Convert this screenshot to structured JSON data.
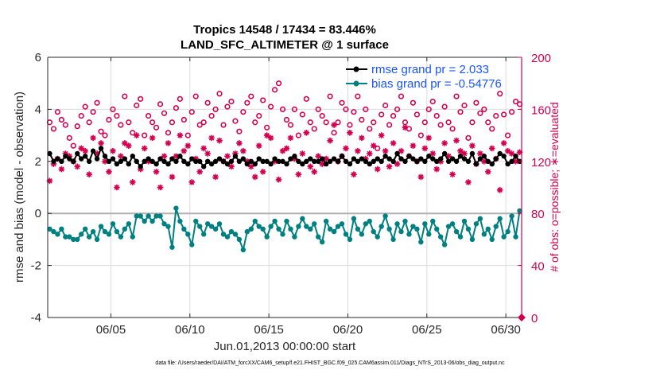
{
  "chart_data": {
    "type": "line",
    "title": [
      "Tropics 14548 / 17434 = 83.446%",
      "LAND_SFC_ALTIMETER @ 1 surface"
    ],
    "xlabel": "Jun.01,2013 00:00:00 start",
    "ylabel_left": "rmse and bias (model - observation)",
    "ylabel_right": "# of obs: o=possible; ∗=evaluated",
    "footer": "data file: /Users/raeder/DAI/ATM_forcXX/CAM6_setup/f.e21.FHIST_BGC.f09_025.CAM6assim.011/Diags_NTrS_2013-06/obs_diag_output.nc",
    "xlim_days": [
      0,
      30
    ],
    "x_start_day": 0.125,
    "x_step_days": 0.25,
    "x_ticks": [
      {
        "day": 4,
        "label": "06/05"
      },
      {
        "day": 9,
        "label": "06/10"
      },
      {
        "day": 14,
        "label": "06/15"
      },
      {
        "day": 19,
        "label": "06/20"
      },
      {
        "day": 24,
        "label": "06/25"
      },
      {
        "day": 29,
        "label": "06/30"
      }
    ],
    "ylim_left": [
      -4,
      6
    ],
    "y_ticks_left": [
      -4,
      -2,
      0,
      2,
      4,
      6
    ],
    "ylim_right": [
      0,
      200
    ],
    "y_ticks_right": [
      0,
      40,
      80,
      120,
      160,
      200
    ],
    "grid": true,
    "legend": {
      "placement": "top-right",
      "entries": [
        "rmse grand pr = 2.033",
        "bias grand pr = -0.54776"
      ]
    },
    "colors": {
      "rmse": "#000000",
      "bias": "#008080",
      "obs": "#d4004f",
      "legend_text": "#1a55ff",
      "grid": "#dcdcdc",
      "zero": "#b0b0b0"
    },
    "right_axis_marker": 0,
    "series": [
      {
        "name": "rmse",
        "axis": "left",
        "values": [
          2.3,
          2.0,
          2.1,
          2.0,
          2.2,
          2.1,
          2.0,
          2.3,
          2.1,
          2.2,
          2.0,
          2.4,
          2.1,
          2.5,
          2.2,
          2.0,
          2.1,
          1.9,
          2.0,
          2.1,
          1.9,
          2.2,
          2.0,
          1.8,
          2.0,
          2.1,
          2.0,
          1.9,
          2.1,
          2.0,
          1.9,
          2.1,
          2.0,
          2.2,
          2.0,
          1.9,
          2.1,
          2.0,
          2.0,
          1.8,
          2.0,
          1.9,
          2.0,
          2.1,
          2.0,
          1.9,
          2.0,
          2.2,
          2.0,
          2.1,
          1.9,
          2.0,
          1.9,
          2.1,
          2.0,
          2.0,
          1.9,
          2.1,
          2.0,
          2.0,
          1.9,
          2.1,
          2.2,
          2.0,
          1.9,
          2.0,
          2.1,
          2.0,
          2.0,
          2.1,
          1.9,
          2.0,
          2.1,
          2.0,
          2.2,
          2.0,
          1.9,
          2.1,
          2.0,
          2.1,
          2.0,
          1.9,
          2.0,
          2.1,
          2.0,
          2.2,
          2.1,
          2.0,
          2.3,
          2.1,
          2.0,
          2.2,
          2.1,
          2.0,
          2.1,
          2.0,
          2.2,
          2.1,
          2.0,
          2.1,
          2.3,
          2.0,
          2.1,
          2.0,
          2.2,
          2.1,
          2.0,
          2.3,
          1.9,
          2.1,
          2.2,
          2.0,
          1.9,
          2.1,
          2.3,
          2.2,
          1.9,
          2.0,
          2.2,
          2.0
        ]
      },
      {
        "name": "bias",
        "axis": "left",
        "values": [
          -0.6,
          -0.7,
          -0.8,
          -0.6,
          -0.9,
          -0.9,
          -1.0,
          -1.0,
          -0.8,
          -0.6,
          -0.9,
          -0.7,
          -1.0,
          -0.5,
          -0.7,
          -0.8,
          -0.4,
          -0.7,
          -0.9,
          -0.6,
          -0.4,
          -0.9,
          -0.1,
          -0.1,
          -0.3,
          -0.1,
          -0.3,
          -0.1,
          -0.1,
          -0.4,
          -0.5,
          -1.3,
          0.2,
          -0.3,
          -0.6,
          -0.8,
          -1.2,
          -0.3,
          -0.5,
          -0.8,
          -0.4,
          -0.5,
          -0.6,
          -0.4,
          -0.8,
          -0.9,
          -0.7,
          -0.8,
          -1.0,
          -1.4,
          -0.7,
          -0.6,
          -0.3,
          -0.5,
          -0.6,
          -0.9,
          -0.5,
          -0.3,
          -0.6,
          -0.8,
          -0.3,
          -0.6,
          -0.9,
          -0.5,
          -0.2,
          -0.5,
          -0.6,
          -0.4,
          -0.9,
          -1.1,
          -0.3,
          -0.6,
          -0.7,
          -0.5,
          -0.4,
          -0.8,
          -1.0,
          -0.2,
          -0.6,
          -0.8,
          -0.4,
          -0.3,
          -0.7,
          -0.9,
          -0.5,
          -0.1,
          -0.6,
          -1.0,
          -0.4,
          -0.7,
          -0.3,
          -0.8,
          -0.5,
          -0.6,
          -1.1,
          -0.4,
          -0.8,
          -0.3,
          -0.6,
          -0.9,
          -1.2,
          -0.5,
          -0.4,
          -0.7,
          -0.9,
          -0.3,
          -0.6,
          -1.0,
          -0.4,
          -0.2,
          -0.8,
          -0.6,
          -1.0,
          -0.5,
          -0.2,
          -0.9,
          -0.7,
          -0.1,
          -0.9,
          0.1
        ]
      },
      {
        "name": "possible",
        "axis": "right",
        "values": [
          150,
          145,
          158,
          152,
          148,
          138,
          132,
          147,
          155,
          162,
          150,
          158,
          165,
          143,
          140,
          152,
          160,
          155,
          148,
          170,
          150,
          142,
          163,
          168,
          140,
          155,
          150,
          146,
          164,
          157,
          142,
          150,
          161,
          168,
          152,
          140,
          158,
          170,
          148,
          150,
          165,
          155,
          160,
          172,
          148,
          162,
          166,
          151,
          143,
          158,
          165,
          170,
          150,
          155,
          167,
          146,
          162,
          175,
          180,
          160,
          152,
          148,
          160,
          140,
          156,
          168,
          150,
          145,
          160,
          155,
          150,
          170,
          142,
          150,
          165,
          160,
          148,
          158,
          170,
          152,
          160,
          145,
          150,
          130,
          156,
          163,
          148,
          155,
          160,
          170,
          150,
          145,
          165,
          156,
          140,
          150,
          160,
          166,
          155,
          148,
          162,
          150,
          145,
          170,
          158,
          163,
          138,
          150,
          165,
          157,
          160,
          150,
          145,
          155,
          172,
          156,
          140,
          158,
          166,
          164
        ]
      },
      {
        "name": "evaluated",
        "axis": "right",
        "values": [
          105,
          118,
          122,
          114,
          126,
          124,
          120,
          116,
          130,
          128,
          110,
          138,
          126,
          134,
          120,
          112,
          128,
          100,
          124,
          134,
          132,
          104,
          140,
          114,
          130,
          120,
          138,
          112,
          100,
          124,
          134,
          108,
          124,
          140,
          128,
          132,
          104,
          122,
          112,
          130,
          126,
          138,
          108,
          136,
          120,
          124,
          116,
          126,
          134,
          128,
          120,
          116,
          108,
          132,
          112,
          140,
          138,
          120,
          106,
          128,
          130,
          138,
          122,
          110,
          126,
          142,
          116,
          112,
          124,
          118,
          122,
          136,
          148,
          120,
          124,
          130,
          142,
          110,
          128,
          138,
          122,
          126,
          132,
          114,
          140,
          128,
          116,
          134,
          118,
          128,
          146,
          124,
          132,
          120,
          108,
          130,
          138,
          126,
          114,
          120,
          134,
          124,
          110,
          136,
          128,
          126,
          104,
          132,
          118,
          126,
          120,
          112,
          130,
          122,
          98,
          134,
          128,
          126,
          120,
          127
        ]
      }
    ]
  }
}
